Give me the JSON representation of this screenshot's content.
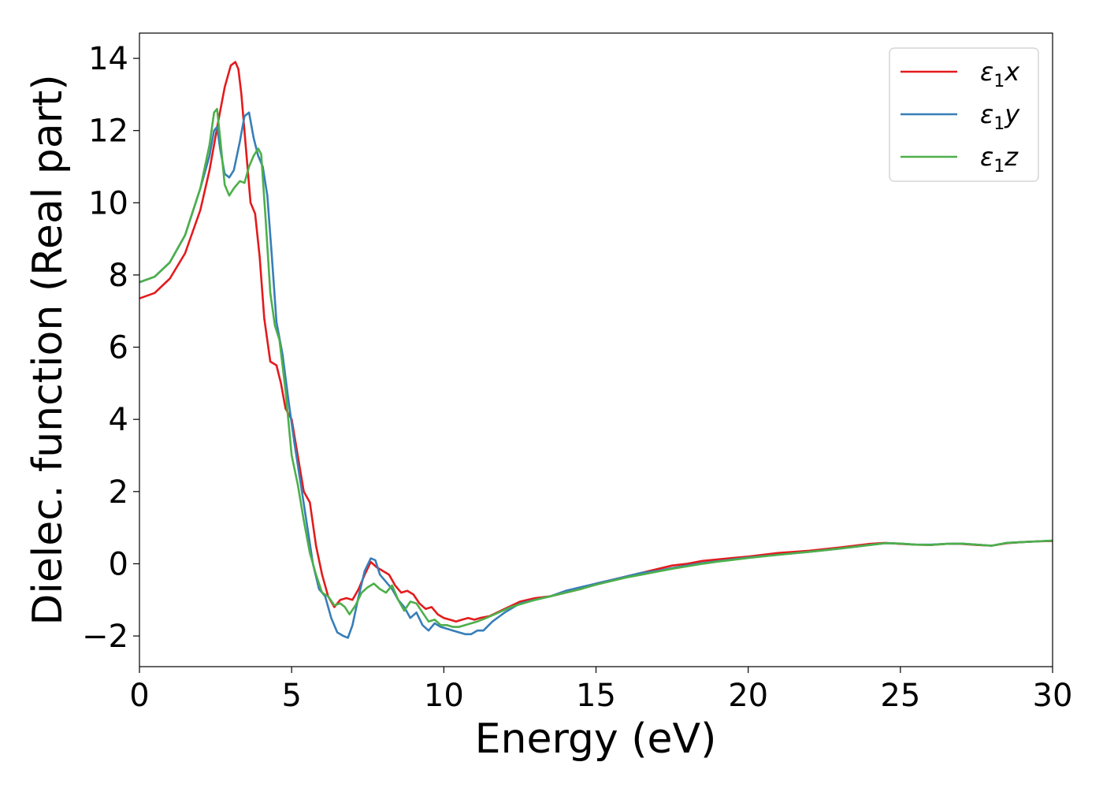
{
  "chart_data": {
    "type": "line",
    "title": "",
    "xlabel": "Energy (eV)",
    "ylabel": "Dielec. function (Real part)",
    "xlim": [
      0,
      30
    ],
    "ylim": [
      -2.85,
      14.7
    ],
    "xticks": [
      0,
      5,
      10,
      15,
      20,
      25,
      30
    ],
    "xtick_labels": [
      "0",
      "5",
      "10",
      "15",
      "20",
      "25",
      "30"
    ],
    "yticks": [
      -2,
      0,
      2,
      4,
      6,
      8,
      10,
      12,
      14
    ],
    "ytick_labels": [
      "−2",
      "0",
      "2",
      "4",
      "6",
      "8",
      "10",
      "12",
      "14"
    ],
    "grid": false,
    "legend_position": "top-right",
    "series": [
      {
        "name": "ε₁x",
        "legend": {
          "symbol": "ε",
          "sub": "1",
          "suffix": "x"
        },
        "color": "#e41a1c",
        "x": [
          0,
          0.5,
          1.0,
          1.5,
          2.0,
          2.3,
          2.6,
          2.8,
          3.0,
          3.15,
          3.25,
          3.35,
          3.5,
          3.65,
          3.8,
          3.95,
          4.1,
          4.3,
          4.5,
          4.65,
          4.8,
          5.0,
          5.2,
          5.4,
          5.6,
          5.8,
          6.0,
          6.2,
          6.4,
          6.6,
          6.8,
          7.0,
          7.2,
          7.4,
          7.6,
          7.8,
          8.0,
          8.2,
          8.4,
          8.6,
          8.8,
          9.0,
          9.2,
          9.4,
          9.6,
          9.8,
          10.0,
          10.2,
          10.4,
          10.6,
          10.8,
          11.0,
          11.2,
          11.5,
          12.0,
          12.5,
          13.0,
          13.5,
          14.0,
          14.5,
          15.0,
          15.5,
          16.0,
          16.5,
          17.0,
          17.5,
          18.0,
          18.5,
          19.0,
          19.5,
          20.0,
          21.0,
          22.0,
          23.0,
          24.0,
          24.5,
          25.0,
          25.5,
          26.0,
          26.5,
          27.0,
          27.5,
          28.0,
          28.5,
          29.0,
          29.5,
          30.0
        ],
        "y": [
          7.35,
          7.5,
          7.9,
          8.6,
          9.8,
          10.9,
          12.3,
          13.2,
          13.8,
          13.9,
          13.7,
          13.0,
          11.5,
          10.0,
          9.7,
          8.5,
          6.8,
          5.6,
          5.5,
          5.0,
          4.3,
          4.0,
          3.0,
          2.0,
          1.7,
          0.5,
          -0.3,
          -0.9,
          -1.2,
          -1.0,
          -0.95,
          -1.0,
          -0.7,
          -0.3,
          0.05,
          -0.1,
          -0.2,
          -0.3,
          -0.6,
          -0.8,
          -0.75,
          -0.85,
          -1.1,
          -1.25,
          -1.2,
          -1.4,
          -1.5,
          -1.55,
          -1.6,
          -1.55,
          -1.5,
          -1.55,
          -1.5,
          -1.45,
          -1.25,
          -1.05,
          -0.95,
          -0.9,
          -0.8,
          -0.7,
          -0.55,
          -0.45,
          -0.35,
          -0.25,
          -0.15,
          -0.05,
          0.0,
          0.08,
          0.12,
          0.16,
          0.2,
          0.3,
          0.36,
          0.45,
          0.55,
          0.58,
          0.55,
          0.53,
          0.52,
          0.55,
          0.55,
          0.52,
          0.5,
          0.57,
          0.6,
          0.62,
          0.63
        ]
      },
      {
        "name": "ε₁y",
        "legend": {
          "symbol": "ε",
          "sub": "1",
          "suffix": "y"
        },
        "color": "#377eb8",
        "x": [
          0,
          0.5,
          1.0,
          1.5,
          2.0,
          2.3,
          2.45,
          2.55,
          2.65,
          2.8,
          2.95,
          3.1,
          3.3,
          3.45,
          3.6,
          3.75,
          3.9,
          4.05,
          4.2,
          4.35,
          4.5,
          4.7,
          4.9,
          5.1,
          5.3,
          5.5,
          5.7,
          5.9,
          6.1,
          6.3,
          6.5,
          6.7,
          6.85,
          7.0,
          7.2,
          7.4,
          7.6,
          7.75,
          7.9,
          8.1,
          8.3,
          8.5,
          8.7,
          8.9,
          9.1,
          9.3,
          9.5,
          9.7,
          9.9,
          10.1,
          10.3,
          10.5,
          10.7,
          10.9,
          11.1,
          11.3,
          11.6,
          12.0,
          12.5,
          13.0,
          13.5,
          14.0,
          14.5,
          15.0,
          15.5,
          16.0,
          16.5,
          17.0,
          17.5,
          18.0,
          18.5,
          19.0,
          19.5,
          20.0,
          21.0,
          22.0,
          23.0,
          24.0,
          24.5,
          25.0,
          25.5,
          26.0,
          26.5,
          27.0,
          27.5,
          28.0,
          28.5,
          29.0,
          29.5,
          30.0
        ],
        "y": [
          7.8,
          7.95,
          8.35,
          9.1,
          10.4,
          11.3,
          12.0,
          12.1,
          11.5,
          10.8,
          10.7,
          10.9,
          11.7,
          12.4,
          12.5,
          11.8,
          11.3,
          11.0,
          10.2,
          8.5,
          6.7,
          5.8,
          4.5,
          3.3,
          2.2,
          1.1,
          0.0,
          -0.7,
          -0.9,
          -1.5,
          -1.9,
          -2.0,
          -2.05,
          -1.7,
          -0.9,
          -0.2,
          0.15,
          0.1,
          -0.3,
          -0.5,
          -0.7,
          -1.0,
          -1.2,
          -1.5,
          -1.35,
          -1.7,
          -1.85,
          -1.65,
          -1.75,
          -1.8,
          -1.85,
          -1.9,
          -1.95,
          -1.95,
          -1.85,
          -1.85,
          -1.6,
          -1.35,
          -1.1,
          -1.0,
          -0.9,
          -0.75,
          -0.65,
          -0.55,
          -0.45,
          -0.35,
          -0.25,
          -0.2,
          -0.12,
          -0.05,
          0.02,
          0.07,
          0.12,
          0.17,
          0.25,
          0.33,
          0.42,
          0.52,
          0.57,
          0.56,
          0.53,
          0.53,
          0.55,
          0.56,
          0.53,
          0.5,
          0.58,
          0.6,
          0.62,
          0.64
        ]
      },
      {
        "name": "ε₁z",
        "legend": {
          "symbol": "ε",
          "sub": "1",
          "suffix": "z"
        },
        "color": "#4daf4a",
        "x": [
          0,
          0.5,
          1.0,
          1.5,
          2.0,
          2.3,
          2.45,
          2.55,
          2.65,
          2.8,
          2.95,
          3.1,
          3.3,
          3.45,
          3.6,
          3.75,
          3.9,
          4.0,
          4.15,
          4.3,
          4.45,
          4.6,
          4.8,
          5.0,
          5.2,
          5.4,
          5.6,
          5.8,
          6.0,
          6.2,
          6.4,
          6.6,
          6.75,
          6.9,
          7.1,
          7.3,
          7.5,
          7.7,
          7.9,
          8.1,
          8.3,
          8.5,
          8.7,
          8.9,
          9.1,
          9.3,
          9.5,
          9.7,
          9.9,
          10.1,
          10.3,
          10.5,
          10.7,
          10.9,
          11.1,
          11.4,
          11.8,
          12.2,
          12.6,
          13.0,
          13.5,
          14.0,
          14.5,
          15.0,
          15.5,
          16.0,
          16.5,
          17.0,
          17.5,
          18.0,
          18.5,
          19.0,
          19.5,
          20.0,
          21.0,
          22.0,
          23.0,
          24.0,
          24.5,
          25.0,
          25.5,
          26.0,
          26.5,
          27.0,
          27.5,
          28.0,
          28.5,
          29.0,
          29.5,
          30.0
        ],
        "y": [
          7.8,
          7.95,
          8.35,
          9.1,
          10.4,
          11.6,
          12.5,
          12.6,
          11.8,
          10.5,
          10.2,
          10.4,
          10.6,
          10.55,
          11.0,
          11.3,
          11.5,
          11.35,
          9.5,
          7.5,
          6.6,
          6.2,
          4.8,
          3.0,
          2.2,
          1.2,
          0.3,
          -0.3,
          -0.8,
          -0.9,
          -1.15,
          -1.1,
          -1.2,
          -1.4,
          -1.15,
          -0.8,
          -0.65,
          -0.55,
          -0.7,
          -0.8,
          -0.6,
          -1.0,
          -1.3,
          -1.05,
          -1.1,
          -1.35,
          -1.6,
          -1.55,
          -1.7,
          -1.7,
          -1.75,
          -1.75,
          -1.7,
          -1.65,
          -1.6,
          -1.5,
          -1.35,
          -1.2,
          -1.1,
          -1.0,
          -0.9,
          -0.8,
          -0.7,
          -0.58,
          -0.48,
          -0.38,
          -0.3,
          -0.22,
          -0.14,
          -0.07,
          0.0,
          0.06,
          0.11,
          0.16,
          0.25,
          0.33,
          0.42,
          0.52,
          0.57,
          0.56,
          0.53,
          0.52,
          0.55,
          0.56,
          0.53,
          0.5,
          0.58,
          0.6,
          0.62,
          0.64
        ]
      }
    ]
  }
}
